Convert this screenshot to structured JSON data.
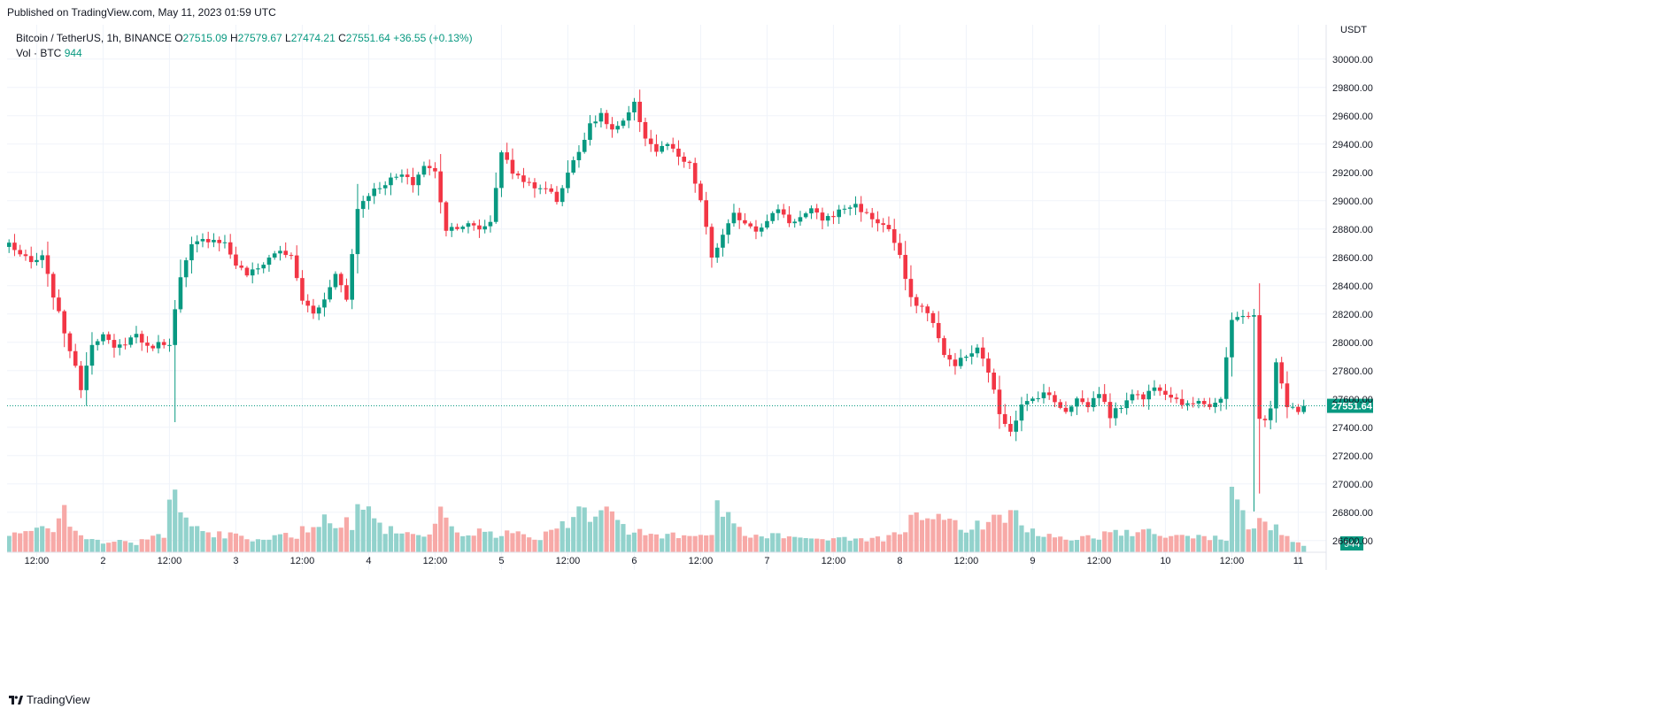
{
  "published": "Published on TradingView.com, May 11, 2023 01:59 UTC",
  "legend": {
    "symbol": "Bitcoin / TetherUS, 1h, BINANCE",
    "o_label": "O",
    "o": "27515.09",
    "h_label": "H",
    "h": "27579.67",
    "l_label": "L",
    "l": "27474.21",
    "c_label": "C",
    "c": "27551.64",
    "change": "+36.55 (+0.13%)",
    "vol_label": "Vol · BTC",
    "vol_value": "944"
  },
  "footer": {
    "brand": "TradingView"
  },
  "colors": {
    "up": "#089981",
    "down": "#f23645",
    "vol_up": "#92d2cc",
    "vol_down": "#f7a9a7",
    "grid": "#f0f3fa",
    "axis_text": "#131722"
  },
  "chart_data": {
    "type": "candlestick",
    "y_axis_unit": "USDT",
    "ylim": [
      26480,
      30080
    ],
    "yticks": [
      26600,
      26800,
      27000,
      27200,
      27400,
      27600,
      27800,
      28000,
      28200,
      28400,
      28600,
      28800,
      29000,
      29200,
      29400,
      29600,
      29800,
      30000
    ],
    "ytick_labels": [
      "26600.00",
      "26800.00",
      "27000.00",
      "27200.00",
      "27400.00",
      "27600.00",
      "27800.00",
      "28000.00",
      "28200.00",
      "28400.00",
      "28600.00",
      "28800.00",
      "29000.00",
      "29200.00",
      "29400.00",
      "29600.00",
      "29800.00",
      "30000.00"
    ],
    "xticks": [
      {
        "hour": 5,
        "label": "12:00"
      },
      {
        "hour": 17,
        "label": "2"
      },
      {
        "hour": 29,
        "label": "12:00"
      },
      {
        "hour": 41,
        "label": "3"
      },
      {
        "hour": 53,
        "label": "12:00"
      },
      {
        "hour": 65,
        "label": "4"
      },
      {
        "hour": 77,
        "label": "12:00"
      },
      {
        "hour": 89,
        "label": "5"
      },
      {
        "hour": 101,
        "label": "12:00"
      },
      {
        "hour": 113,
        "label": "6"
      },
      {
        "hour": 125,
        "label": "12:00"
      },
      {
        "hour": 137,
        "label": "7"
      },
      {
        "hour": 149,
        "label": "12:00"
      },
      {
        "hour": 161,
        "label": "8"
      },
      {
        "hour": 173,
        "label": "12:00"
      },
      {
        "hour": 185,
        "label": "9"
      },
      {
        "hour": 197,
        "label": "12:00"
      },
      {
        "hour": 209,
        "label": "10"
      },
      {
        "hour": 221,
        "label": "12:00"
      },
      {
        "hour": 233,
        "label": "11"
      }
    ],
    "last_price": 27551.64,
    "last_price_label": "27551.64",
    "last_volume_label": "944",
    "anchors": [
      [
        0,
        28700
      ],
      [
        2,
        28620
      ],
      [
        4,
        28560
      ],
      [
        6,
        28600
      ],
      [
        9,
        28200
      ],
      [
        11,
        27950
      ],
      [
        13,
        27680
      ],
      [
        15,
        28000
      ],
      [
        17,
        28050
      ],
      [
        19,
        27950
      ],
      [
        21,
        28000
      ],
      [
        23,
        28060
      ],
      [
        25,
        27960
      ],
      [
        27,
        27990
      ],
      [
        29,
        28000
      ],
      [
        31,
        28450
      ],
      [
        33,
        28680
      ],
      [
        35,
        28720
      ],
      [
        37,
        28730
      ],
      [
        39,
        28700
      ],
      [
        41,
        28550
      ],
      [
        43,
        28480
      ],
      [
        45,
        28520
      ],
      [
        47,
        28600
      ],
      [
        49,
        28650
      ],
      [
        51,
        28600
      ],
      [
        53,
        28300
      ],
      [
        55,
        28200
      ],
      [
        57,
        28300
      ],
      [
        59,
        28500
      ],
      [
        61,
        28300
      ],
      [
        63,
        28950
      ],
      [
        65,
        29050
      ],
      [
        67,
        29100
      ],
      [
        69,
        29150
      ],
      [
        71,
        29180
      ],
      [
        73,
        29120
      ],
      [
        75,
        29250
      ],
      [
        77,
        29200
      ],
      [
        79,
        28800
      ],
      [
        81,
        28820
      ],
      [
        83,
        28830
      ],
      [
        85,
        28800
      ],
      [
        87,
        28850
      ],
      [
        89,
        29350
      ],
      [
        91,
        29200
      ],
      [
        93,
        29150
      ],
      [
        95,
        29080
      ],
      [
        97,
        29100
      ],
      [
        99,
        29000
      ],
      [
        101,
        29200
      ],
      [
        103,
        29350
      ],
      [
        105,
        29550
      ],
      [
        107,
        29600
      ],
      [
        109,
        29500
      ],
      [
        111,
        29550
      ],
      [
        113,
        29680
      ],
      [
        115,
        29450
      ],
      [
        117,
        29350
      ],
      [
        119,
        29400
      ],
      [
        121,
        29300
      ],
      [
        123,
        29250
      ],
      [
        125,
        29000
      ],
      [
        127,
        28600
      ],
      [
        129,
        28750
      ],
      [
        131,
        28900
      ],
      [
        133,
        28850
      ],
      [
        135,
        28800
      ],
      [
        137,
        28850
      ],
      [
        139,
        28950
      ],
      [
        141,
        28850
      ],
      [
        143,
        28880
      ],
      [
        145,
        28930
      ],
      [
        147,
        28870
      ],
      [
        149,
        28900
      ],
      [
        151,
        28950
      ],
      [
        153,
        28970
      ],
      [
        155,
        28900
      ],
      [
        157,
        28850
      ],
      [
        159,
        28800
      ],
      [
        161,
        28600
      ],
      [
        163,
        28300
      ],
      [
        165,
        28250
      ],
      [
        167,
        28150
      ],
      [
        169,
        27900
      ],
      [
        171,
        27850
      ],
      [
        173,
        27900
      ],
      [
        175,
        27950
      ],
      [
        177,
        27800
      ],
      [
        179,
        27500
      ],
      [
        181,
        27380
      ],
      [
        183,
        27550
      ],
      [
        185,
        27600
      ],
      [
        187,
        27650
      ],
      [
        189,
        27580
      ],
      [
        191,
        27520
      ],
      [
        193,
        27600
      ],
      [
        195,
        27550
      ],
      [
        197,
        27650
      ],
      [
        199,
        27480
      ],
      [
        201,
        27550
      ],
      [
        203,
        27650
      ],
      [
        205,
        27600
      ],
      [
        207,
        27700
      ],
      [
        209,
        27650
      ],
      [
        211,
        27600
      ],
      [
        213,
        27550
      ],
      [
        215,
        27600
      ],
      [
        217,
        27550
      ],
      [
        219,
        27600
      ],
      [
        221,
        28150
      ],
      [
        223,
        28200
      ],
      [
        225,
        28180
      ],
      [
        226,
        27450
      ],
      [
        227,
        27450
      ],
      [
        228,
        27550
      ],
      [
        229,
        27850
      ],
      [
        230,
        27700
      ],
      [
        231,
        27560
      ],
      [
        232,
        27560
      ],
      [
        233,
        27515
      ],
      [
        234,
        27552
      ]
    ],
    "volume_anchors": [
      [
        0,
        150
      ],
      [
        6,
        200
      ],
      [
        9,
        260
      ],
      [
        10,
        380
      ],
      [
        13,
        140
      ],
      [
        18,
        100
      ],
      [
        23,
        90
      ],
      [
        28,
        180
      ],
      [
        29,
        620
      ],
      [
        30,
        520
      ],
      [
        34,
        200
      ],
      [
        40,
        150
      ],
      [
        45,
        120
      ],
      [
        52,
        160
      ],
      [
        55,
        280
      ],
      [
        57,
        330
      ],
      [
        62,
        260
      ],
      [
        63,
        600
      ],
      [
        65,
        350
      ],
      [
        68,
        210
      ],
      [
        72,
        180
      ],
      [
        76,
        160
      ],
      [
        78,
        450
      ],
      [
        80,
        200
      ],
      [
        90,
        170
      ],
      [
        96,
        150
      ],
      [
        102,
        300
      ],
      [
        103,
        470
      ],
      [
        105,
        380
      ],
      [
        108,
        460
      ],
      [
        110,
        250
      ],
      [
        116,
        160
      ],
      [
        122,
        150
      ],
      [
        127,
        200
      ],
      [
        128,
        520
      ],
      [
        129,
        350
      ],
      [
        134,
        140
      ],
      [
        140,
        170
      ],
      [
        146,
        120
      ],
      [
        152,
        140
      ],
      [
        158,
        120
      ],
      [
        162,
        200
      ],
      [
        163,
        430
      ],
      [
        166,
        290
      ],
      [
        168,
        400
      ],
      [
        173,
        240
      ],
      [
        177,
        280
      ],
      [
        180,
        310
      ],
      [
        181,
        520
      ],
      [
        183,
        230
      ],
      [
        190,
        130
      ],
      [
        196,
        140
      ],
      [
        200,
        180
      ],
      [
        204,
        200
      ],
      [
        210,
        150
      ],
      [
        216,
        130
      ],
      [
        220,
        120
      ],
      [
        221,
        640
      ],
      [
        222,
        500
      ],
      [
        224,
        220
      ],
      [
        226,
        340
      ],
      [
        228,
        250
      ],
      [
        231,
        140
      ],
      [
        234,
        80
      ]
    ],
    "shocks": [
      [
        30,
        0.6
      ],
      [
        225,
        0.1
      ],
      [
        226,
        0.2
      ]
    ]
  }
}
